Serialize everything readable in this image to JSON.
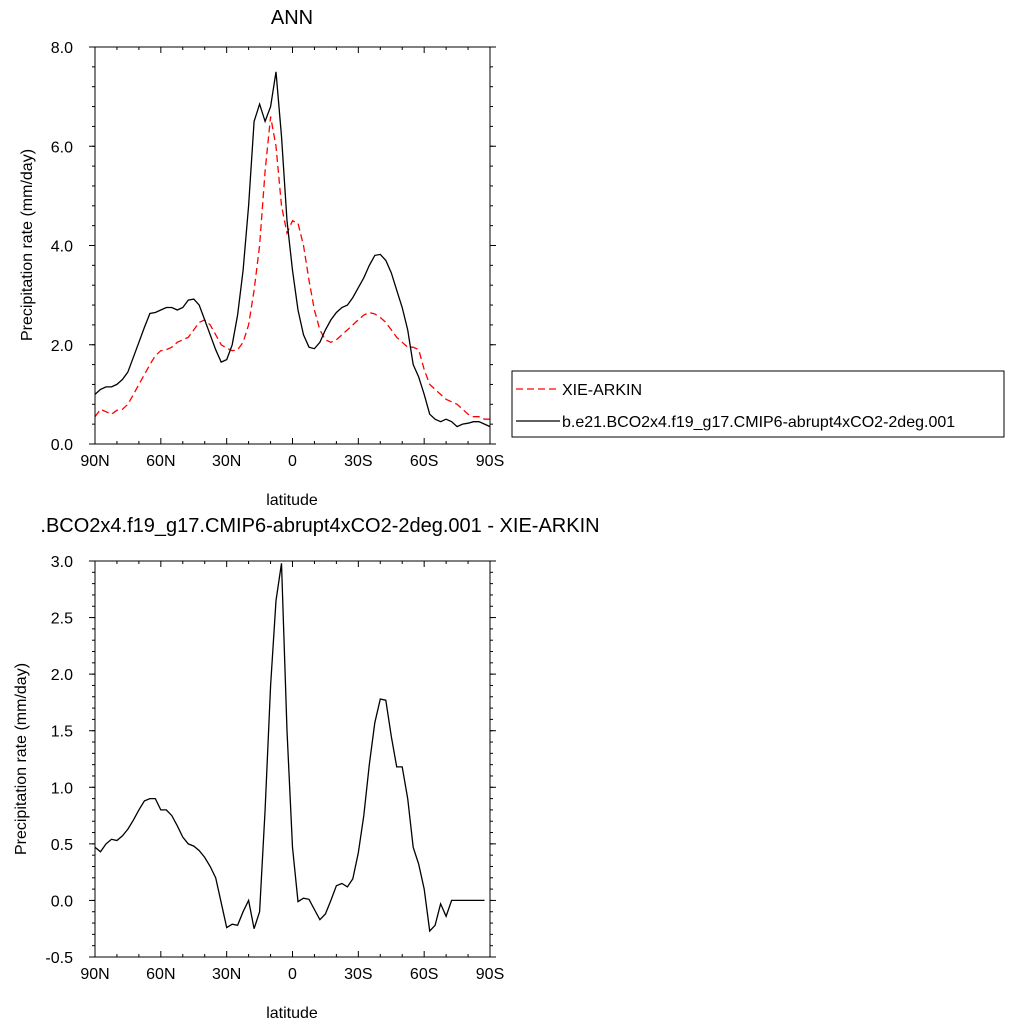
{
  "chart_data": [
    {
      "type": "line",
      "title": "ANN",
      "xlabel": "latitude",
      "ylabel": "Precipitation rate (mm/day)",
      "xlim": [
        90,
        -90
      ],
      "ylim": [
        0,
        8
      ],
      "xticks": [
        90,
        60,
        30,
        0,
        -30,
        -60,
        -90
      ],
      "xtick_labels": [
        "90N",
        "60N",
        "30N",
        "0",
        "30S",
        "60S",
        "90S"
      ],
      "yticks": [
        0,
        2,
        4,
        6,
        8
      ],
      "ytick_labels": [
        "0.0",
        "2.0",
        "4.0",
        "6.0",
        "8.0"
      ],
      "legend_position": "right",
      "series": [
        {
          "name": "XIE-ARKIN",
          "color": "#ff0000",
          "dash": "dashed",
          "x": [
            90,
            87.5,
            85,
            82.5,
            80,
            77.5,
            75,
            72.5,
            70,
            67.5,
            65,
            62.5,
            60,
            57.5,
            55,
            52.5,
            50,
            47.5,
            45,
            42.5,
            40,
            37.5,
            35,
            32.5,
            30,
            27.5,
            25,
            22.5,
            20,
            17.5,
            15,
            12.5,
            10,
            7.5,
            5,
            2.5,
            0,
            -2.5,
            -5,
            -7.5,
            -10,
            -12.5,
            -15,
            -17.5,
            -20,
            -22.5,
            -25,
            -27.5,
            -30,
            -32.5,
            -35,
            -37.5,
            -40,
            -42.5,
            -45,
            -47.5,
            -50,
            -52.5,
            -55,
            -57.5,
            -60,
            -62.5,
            -65,
            -67.5,
            -70,
            -72.5,
            -75,
            -77.5,
            -80,
            -82.5,
            -85,
            -87.5,
            -90
          ],
          "y": [
            0.55,
            0.7,
            0.65,
            0.6,
            0.68,
            0.7,
            0.8,
            1.0,
            1.2,
            1.4,
            1.6,
            1.78,
            1.88,
            1.9,
            1.95,
            2.05,
            2.1,
            2.15,
            2.3,
            2.45,
            2.5,
            2.4,
            2.2,
            2.0,
            1.93,
            1.88,
            1.9,
            2.05,
            2.4,
            3.1,
            4.0,
            5.5,
            6.6,
            6.0,
            4.8,
            4.25,
            4.5,
            4.45,
            4.0,
            3.3,
            2.7,
            2.3,
            2.1,
            2.05,
            2.1,
            2.2,
            2.3,
            2.4,
            2.5,
            2.6,
            2.65,
            2.62,
            2.55,
            2.45,
            2.3,
            2.15,
            2.05,
            1.95,
            1.95,
            1.9,
            1.5,
            1.2,
            1.1,
            1.0,
            0.9,
            0.85,
            0.8,
            0.7,
            0.6,
            0.55,
            0.55,
            0.5,
            0.5
          ]
        },
        {
          "name": "b.e21.BCO2x4.f19_g17.CMIP6-abrupt4xCO2-2deg.001",
          "color": "#000000",
          "dash": "solid",
          "x": [
            90,
            87.5,
            85,
            82.5,
            80,
            77.5,
            75,
            72.5,
            70,
            67.5,
            65,
            62.5,
            60,
            57.5,
            55,
            52.5,
            50,
            47.5,
            45,
            42.5,
            40,
            37.5,
            35,
            32.5,
            30,
            27.5,
            25,
            22.5,
            20,
            17.5,
            15,
            12.5,
            10,
            7.5,
            5,
            2.5,
            0,
            -2.5,
            -5,
            -7.5,
            -10,
            -12.5,
            -15,
            -17.5,
            -20,
            -22.5,
            -25,
            -27.5,
            -30,
            -32.5,
            -35,
            -37.5,
            -40,
            -42.5,
            -45,
            -47.5,
            -50,
            -52.5,
            -55,
            -57.5,
            -60,
            -62.5,
            -65,
            -67.5,
            -70,
            -72.5,
            -75,
            -77.5,
            -80,
            -82.5,
            -85,
            -87.5,
            -90
          ],
          "y": [
            1.0,
            1.1,
            1.15,
            1.15,
            1.2,
            1.3,
            1.45,
            1.75,
            2.05,
            2.35,
            2.63,
            2.65,
            2.7,
            2.75,
            2.75,
            2.7,
            2.75,
            2.9,
            2.92,
            2.8,
            2.5,
            2.2,
            1.9,
            1.65,
            1.7,
            2.0,
            2.6,
            3.5,
            4.8,
            6.5,
            6.85,
            6.5,
            6.8,
            7.5,
            6.2,
            4.5,
            3.5,
            2.7,
            2.2,
            1.95,
            1.92,
            2.05,
            2.3,
            2.5,
            2.65,
            2.75,
            2.8,
            2.95,
            3.15,
            3.35,
            3.6,
            3.8,
            3.82,
            3.7,
            3.45,
            3.1,
            2.75,
            2.3,
            1.6,
            1.35,
            1.0,
            0.6,
            0.5,
            0.45,
            0.5,
            0.45,
            0.35,
            0.4,
            0.42,
            0.45,
            0.45,
            0.4,
            0.35
          ]
        }
      ]
    },
    {
      "type": "line",
      "title": ".BCO2x4.f19_g17.CMIP6-abrupt4xCO2-2deg.001 - XIE-ARKIN",
      "xlabel": "latitude",
      "ylabel": "Precipitation rate (mm/day)",
      "xlim": [
        90,
        -90
      ],
      "ylim": [
        -0.5,
        3.0
      ],
      "xticks": [
        90,
        60,
        30,
        0,
        -30,
        -60,
        -90
      ],
      "xtick_labels": [
        "90N",
        "60N",
        "30N",
        "0",
        "30S",
        "60S",
        "90S"
      ],
      "yticks": [
        -0.5,
        0,
        0.5,
        1,
        1.5,
        2,
        2.5,
        3
      ],
      "ytick_labels": [
        "-0.5",
        "0.0",
        "0.5",
        "1.0",
        "1.5",
        "2.0",
        "2.5",
        "3.0"
      ],
      "series": [
        {
          "color": "#000000",
          "dash": "solid",
          "x": [
            90,
            87.5,
            85,
            82.5,
            80,
            77.5,
            75,
            72.5,
            70,
            67.5,
            65,
            62.5,
            60,
            57.5,
            55,
            52.5,
            50,
            47.5,
            45,
            42.5,
            40,
            37.5,
            35,
            32.5,
            30,
            27.5,
            25,
            22.5,
            20,
            17.5,
            15,
            12.5,
            10,
            7.5,
            5,
            2.5,
            0,
            -2.5,
            -5,
            -7.5,
            -10,
            -12.5,
            -15,
            -17.5,
            -20,
            -22.5,
            -25,
            -27.5,
            -30,
            -32.5,
            -35,
            -37.5,
            -40,
            -42.5,
            -45,
            -47.5,
            -50,
            -52.5,
            -55,
            -57.5,
            -60,
            -62.5,
            -65,
            -67.5,
            -70,
            -72.5,
            -75,
            -77.5,
            -80,
            -82.5,
            -85,
            -87.5
          ],
          "y": [
            0.47,
            0.43,
            0.5,
            0.54,
            0.53,
            0.57,
            0.63,
            0.71,
            0.8,
            0.88,
            0.9,
            0.9,
            0.8,
            0.8,
            0.75,
            0.66,
            0.56,
            0.5,
            0.48,
            0.44,
            0.38,
            0.3,
            0.2,
            -0.02,
            -0.24,
            -0.21,
            -0.22,
            -0.1,
            0.0,
            -0.25,
            -0.1,
            0.8,
            1.9,
            2.65,
            2.98,
            1.5,
            0.47,
            -0.01,
            0.02,
            0.01,
            -0.08,
            -0.17,
            -0.12,
            0.0,
            0.13,
            0.15,
            0.12,
            0.19,
            0.42,
            0.75,
            1.2,
            1.57,
            1.78,
            1.77,
            1.45,
            1.18,
            1.18,
            0.9,
            0.47,
            0.32,
            0.1,
            -0.27,
            -0.22,
            -0.03,
            -0.14,
            0,
            0,
            0,
            0,
            0,
            0,
            0
          ]
        }
      ]
    }
  ]
}
